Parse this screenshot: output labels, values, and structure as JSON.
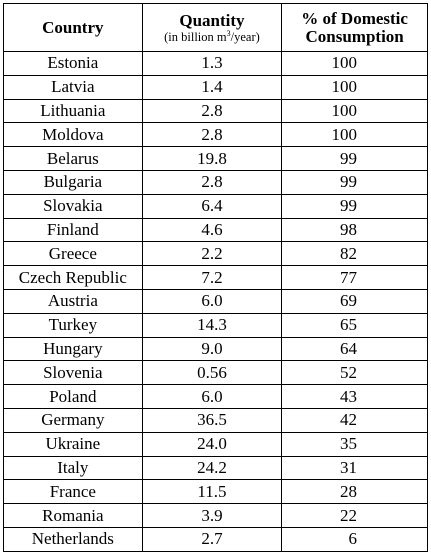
{
  "table": {
    "header": {
      "country": "Country",
      "quantity": "Quantity",
      "quantity_unit": [
        "(in billion m",
        "3",
        "/year)"
      ],
      "share": [
        "% of Domestic",
        "Consumption"
      ]
    },
    "rows": [
      [
        "Estonia",
        "1.3",
        "100"
      ],
      [
        "Latvia",
        "1.4",
        "100"
      ],
      [
        "Lithuania",
        "2.8",
        "100"
      ],
      [
        "Moldova",
        "2.8",
        "100"
      ],
      [
        "Belarus",
        "19.8",
        "99"
      ],
      [
        "Bulgaria",
        "2.8",
        "99"
      ],
      [
        "Slovakia",
        "6.4",
        "99"
      ],
      [
        "Finland",
        "4.6",
        "98"
      ],
      [
        "Greece",
        "2.2",
        "82"
      ],
      [
        "Czech Republic",
        "7.2",
        "77"
      ],
      [
        "Austria",
        "6.0",
        "69"
      ],
      [
        "Turkey",
        "14.3",
        "65"
      ],
      [
        "Hungary",
        "9.0",
        "64"
      ],
      [
        "Slovenia",
        "0.56",
        "52"
      ],
      [
        "Poland",
        "6.0",
        "43"
      ],
      [
        "Germany",
        "36.5",
        "42"
      ],
      [
        "Ukraine",
        "24.0",
        "35"
      ],
      [
        "Italy",
        "24.2",
        "31"
      ],
      [
        "France",
        "11.5",
        "28"
      ],
      [
        "Romania",
        "3.9",
        "22"
      ],
      [
        "Netherlands",
        "2.7",
        "6"
      ]
    ]
  }
}
